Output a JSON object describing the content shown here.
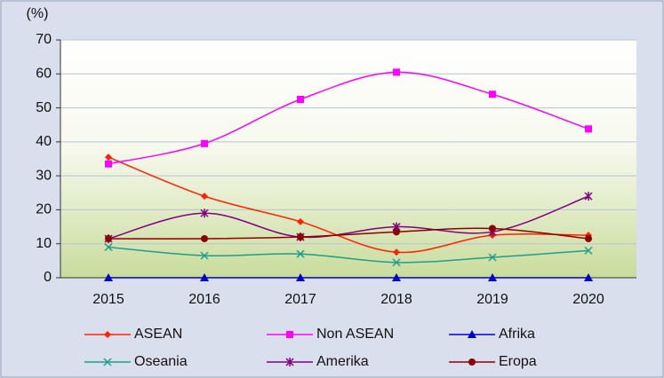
{
  "chart_data": {
    "type": "line",
    "y_label": "(%)",
    "categories": [
      "2015",
      "2016",
      "2017",
      "2018",
      "2019",
      "2020"
    ],
    "series": [
      {
        "name": "ASEAN",
        "color": "#ff2200",
        "marker": "diamond",
        "values": [
          35.5,
          24,
          16.5,
          7.5,
          12.5,
          12.5
        ]
      },
      {
        "name": "Non ASEAN",
        "color": "#ff00ff",
        "marker": "square",
        "values": [
          33.5,
          39.5,
          52.5,
          60.5,
          54,
          43.8
        ]
      },
      {
        "name": "Afrika",
        "color": "#0000cc",
        "marker": "triangle",
        "values": [
          0,
          0,
          0,
          0,
          0,
          0
        ]
      },
      {
        "name": "Oseania",
        "color": "#1f9e8c",
        "marker": "x",
        "values": [
          9,
          6.5,
          7,
          4.5,
          6,
          8
        ]
      },
      {
        "name": "Amerika",
        "color": "#800080",
        "marker": "star",
        "values": [
          11.5,
          19,
          12,
          15,
          13.5,
          24
        ]
      },
      {
        "name": "Eropa",
        "color": "#8b0000",
        "marker": "circle",
        "values": [
          11.5,
          11.5,
          12,
          13.5,
          14.5,
          11.5
        ]
      }
    ],
    "ylim": [
      0,
      70
    ],
    "yticks": [
      0,
      10,
      20,
      30,
      40,
      50,
      60,
      70
    ],
    "grid": true,
    "smooth": true,
    "legend": "bottom"
  }
}
